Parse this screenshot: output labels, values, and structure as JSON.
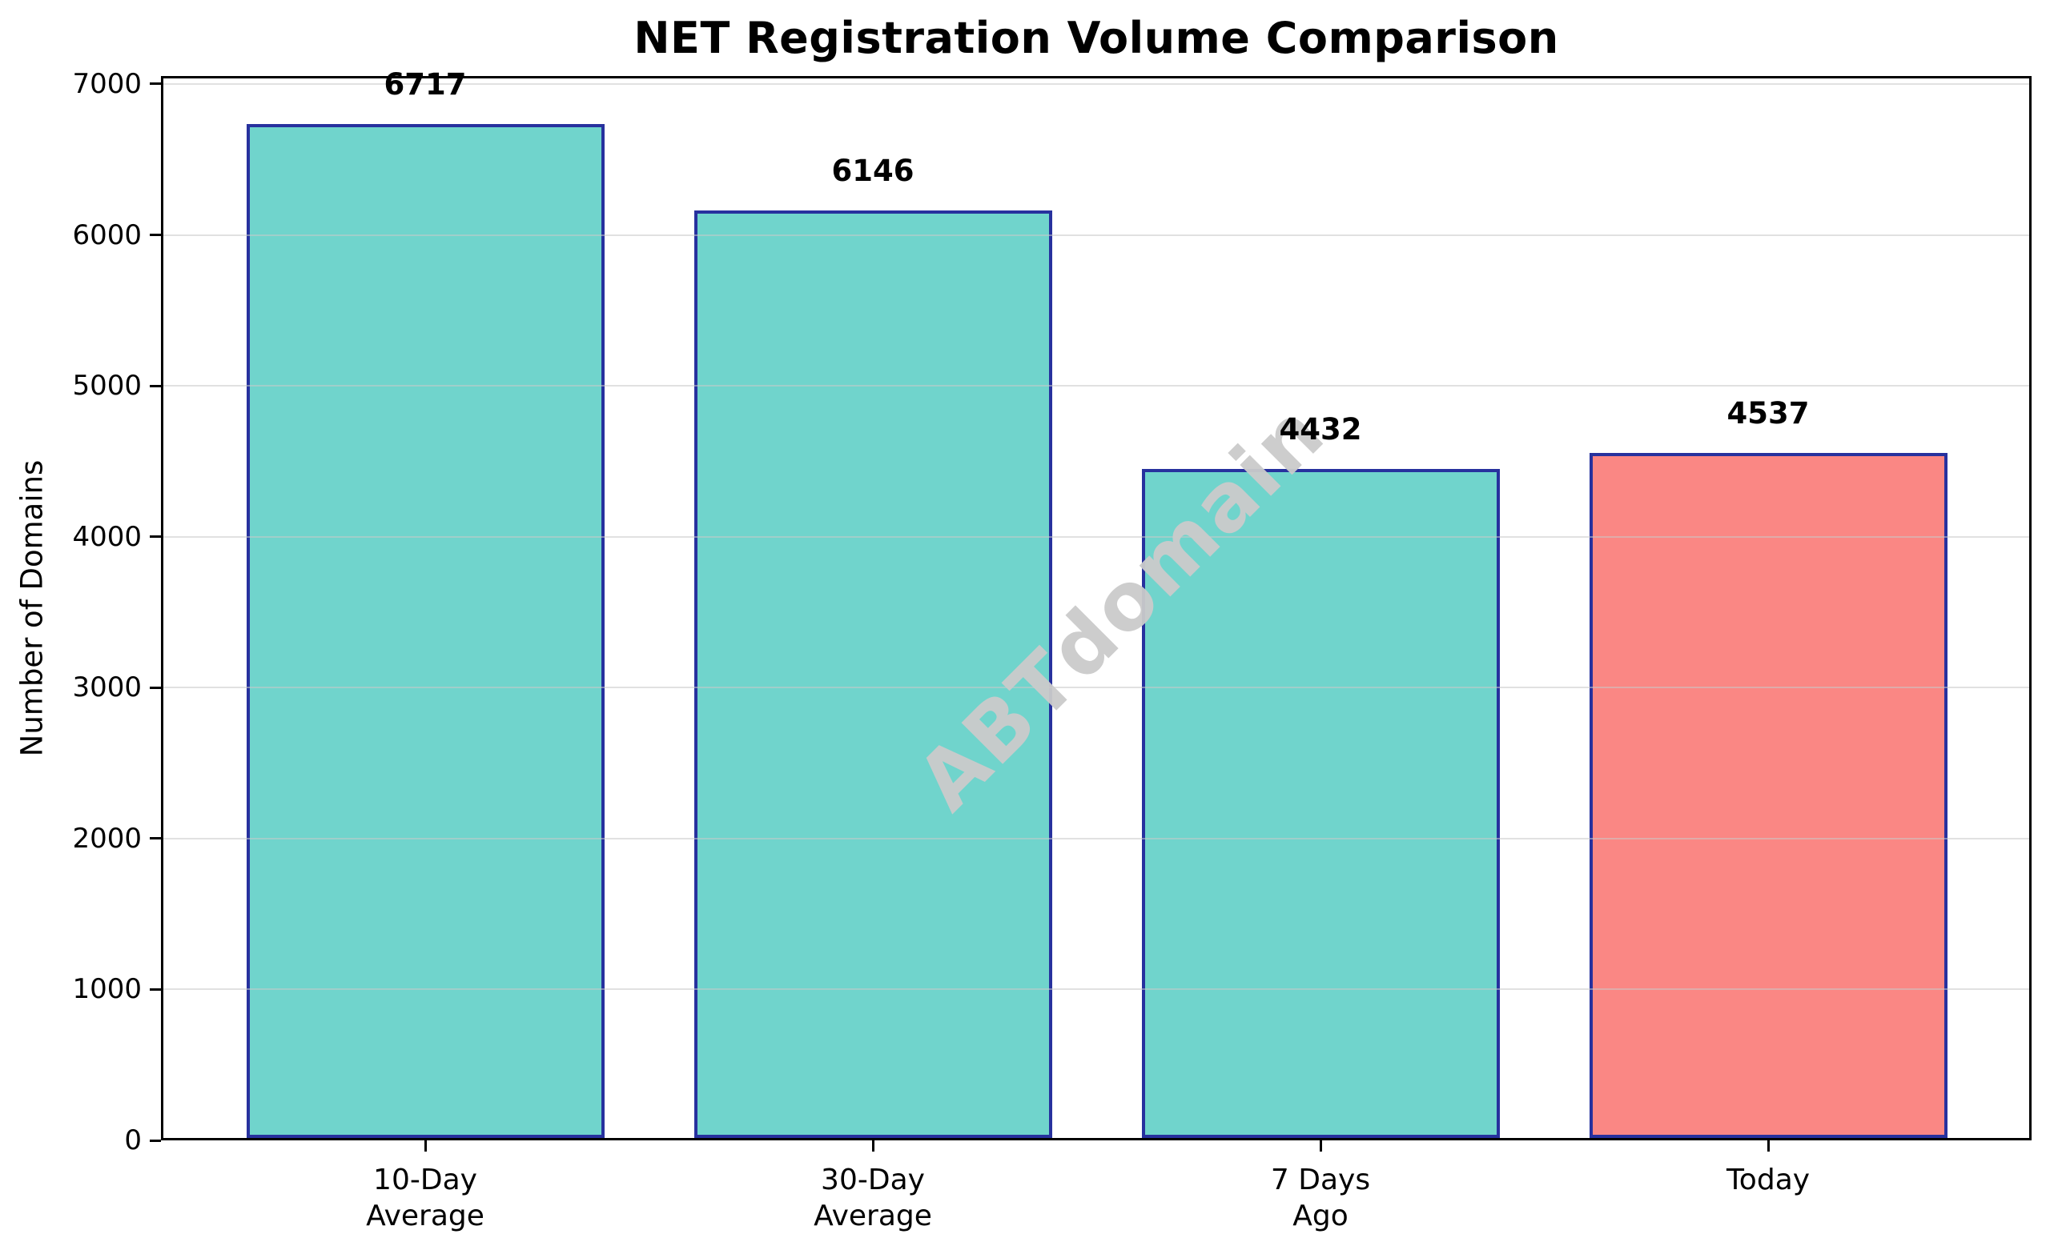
{
  "title": "NET Registration Volume Comparison",
  "chart_data": {
    "type": "bar",
    "title": "NET Registration Volume Comparison",
    "xlabel": "",
    "ylabel": "Number of Domains",
    "categories": [
      "10-Day\nAverage",
      "30-Day\nAverage",
      "7 Days\nAgo",
      "Today"
    ],
    "values": [
      6717,
      6146,
      4432,
      4537
    ],
    "bar_labels": [
      "6717",
      "6146",
      "4432",
      "4537"
    ],
    "bar_colors": [
      "#70D4CC",
      "#70D4CC",
      "#70D4CC",
      "#FA8784"
    ],
    "bar_edge_color": "#27319E",
    "ylim": [
      0,
      7053
    ],
    "yticks": [
      0,
      1000,
      2000,
      3000,
      4000,
      5000,
      6000,
      7000
    ],
    "grid": "horizontal",
    "grid_color": "#E4E4E4",
    "legend_position": "none",
    "watermark": {
      "text": "ABTdomain",
      "color": "#CBCBCB",
      "rotation_deg": -45
    }
  }
}
